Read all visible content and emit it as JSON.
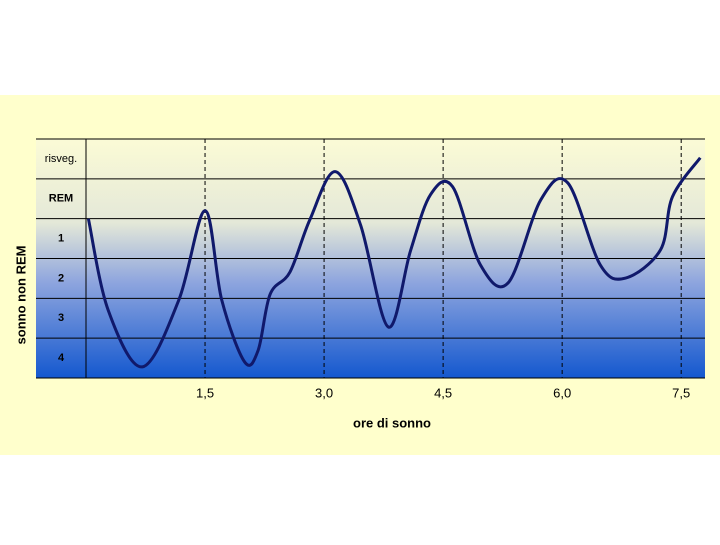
{
  "chart_data": {
    "type": "line",
    "x_label": "ore di sonno",
    "y_label": "sonno non REM",
    "x": [
      0.03,
      0.28,
      0.71,
      1.17,
      1.5,
      1.71,
      2.0,
      2.17,
      2.32,
      2.57,
      2.82,
      3.14,
      3.46,
      3.81,
      4.09,
      4.34,
      4.62,
      4.97,
      5.32,
      5.73,
      6.07,
      6.48,
      6.8,
      7.24,
      7.39,
      7.74
    ],
    "series": [
      {
        "color": "#10196b",
        "values": [
          4.0,
          1.7,
          0.28,
          1.96,
          4.2,
          1.96,
          0.4,
          0.7,
          2.1,
          2.66,
          3.97,
          5.18,
          3.84,
          1.28,
          3.2,
          4.6,
          4.8,
          2.84,
          2.39,
          4.47,
          4.9,
          2.84,
          2.51,
          3.22,
          4.55,
          5.53
        ]
      }
    ],
    "xlim": [
      0,
      7.8
    ],
    "xticks": [
      {
        "value": 1.5,
        "label": "1,5"
      },
      {
        "value": 3.0,
        "label": "3,0"
      },
      {
        "value": 4.5,
        "label": "4,5"
      },
      {
        "value": 6.0,
        "label": "6,0"
      },
      {
        "value": 7.5,
        "label": "7,5"
      }
    ],
    "ylim": [
      0,
      6
    ],
    "yticks": [
      {
        "value": 5.5,
        "label": "risveg."
      },
      {
        "value": 4.5,
        "label": "REM"
      },
      {
        "value": 3.5,
        "label": "1"
      },
      {
        "value": 2.5,
        "label": "2"
      },
      {
        "value": 1.5,
        "label": "3"
      },
      {
        "value": 0.5,
        "label": "4"
      }
    ]
  }
}
